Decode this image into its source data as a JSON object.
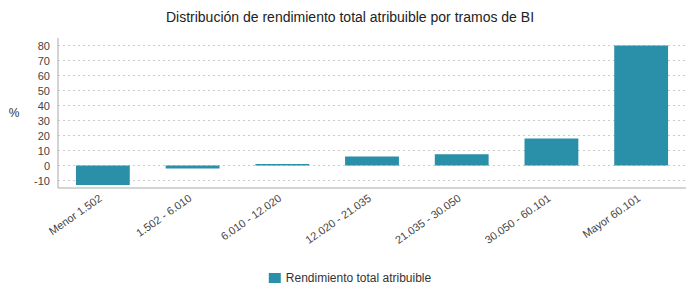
{
  "chart_data": {
    "type": "bar",
    "title": "Distribución de rendimiento total atribuible por tramos de BI",
    "categories": [
      "Menor 1.502",
      "1.502 - 6.010",
      "6.010 - 12.020",
      "12.020 - 21.035",
      "21.035 - 30.050",
      "30.050 - 60.101",
      "Mayor 60.101"
    ],
    "series": [
      {
        "name": "Rendimiento total atribuible",
        "color": "#2a8fa8",
        "values": [
          -13,
          -2,
          1,
          6,
          7.5,
          18,
          80
        ]
      }
    ],
    "ylabel": "%",
    "ylim": [
      -15,
      85
    ],
    "yticks": [
      -10,
      0,
      10,
      20,
      30,
      40,
      50,
      60,
      70,
      80
    ],
    "grid": true,
    "legend": "bottom"
  }
}
